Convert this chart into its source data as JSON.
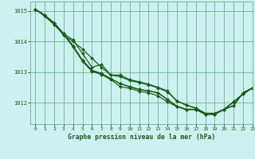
{
  "title": "Graphe pression niveau de la mer (hPa)",
  "background_color": "#cdf0f0",
  "grid_color": "#55aa77",
  "line_color": "#1a5c1a",
  "xlim": [
    -0.5,
    23
  ],
  "ylim": [
    1011.3,
    1015.3
  ],
  "yticks": [
    1012,
    1013,
    1014,
    1015
  ],
  "xticks": [
    0,
    1,
    2,
    3,
    4,
    5,
    6,
    7,
    8,
    9,
    10,
    11,
    12,
    13,
    14,
    15,
    16,
    17,
    18,
    19,
    20,
    21,
    22,
    23
  ],
  "series": [
    [
      1015.05,
      1014.85,
      1014.6,
      1014.2,
      1014.0,
      1013.75,
      1013.45,
      1013.15,
      1012.9,
      1012.9,
      1012.75,
      1012.68,
      1012.6,
      1012.5,
      1012.38,
      1012.05,
      1011.92,
      1011.82,
      1011.65,
      1011.65,
      1011.78,
      1011.9,
      1012.32,
      1012.48
    ],
    [
      1015.05,
      1014.85,
      1014.6,
      1014.25,
      1014.05,
      1013.6,
      1013.15,
      1013.25,
      1012.9,
      1012.85,
      1012.72,
      1012.65,
      1012.58,
      1012.48,
      1012.35,
      1012.05,
      1011.92,
      1011.82,
      1011.65,
      1011.65,
      1011.78,
      1011.9,
      1012.32,
      1012.48
    ],
    [
      1015.05,
      1014.85,
      1014.6,
      1014.25,
      1013.85,
      1013.38,
      1013.05,
      1012.95,
      1012.78,
      1012.62,
      1012.52,
      1012.43,
      1012.38,
      1012.32,
      1012.1,
      1011.88,
      1011.78,
      1011.78,
      1011.62,
      1011.62,
      1011.78,
      1012.02,
      1012.28,
      1012.48
    ],
    [
      1015.05,
      1014.85,
      1014.55,
      1014.25,
      1013.85,
      1013.38,
      1013.05,
      1012.95,
      1012.78,
      1012.62,
      1012.52,
      1012.43,
      1012.38,
      1012.32,
      1012.1,
      1011.88,
      1011.78,
      1011.78,
      1011.62,
      1011.62,
      1011.78,
      1012.02,
      1012.28,
      1012.48
    ],
    [
      1015.05,
      1014.82,
      1014.55,
      1014.22,
      1013.82,
      1013.35,
      1013.02,
      1012.92,
      1012.75,
      1012.52,
      1012.47,
      1012.37,
      1012.32,
      1012.22,
      1012.02,
      1011.87,
      1011.77,
      1011.77,
      1011.62,
      1011.62,
      1011.78,
      1012.02,
      1012.28,
      1012.48
    ]
  ]
}
